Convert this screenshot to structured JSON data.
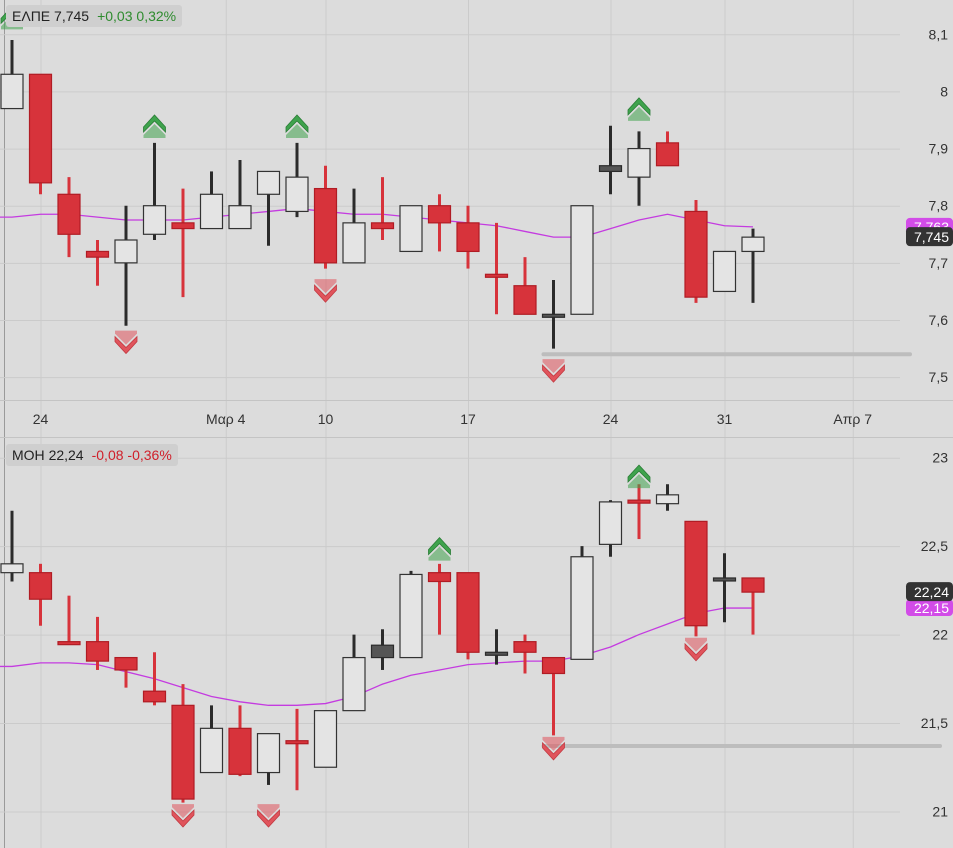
{
  "colors": {
    "background": "#dcdcdc",
    "grid": "#cbcbcb",
    "bear": "#d7333b",
    "bear_edge": "#b01c24",
    "bull_fill": "#e4e4e4",
    "neutral_fill": "#555555",
    "wick": "#2b2b2b",
    "ma": "#c43be0",
    "up_arrow": "#3fa34d",
    "down_arrow": "#e0545c",
    "last_price_bg": "#333333",
    "ma_label_bg": "#d24ce8",
    "support_line": "#bdbdbd"
  },
  "x_axis": {
    "labels": [
      {
        "text": "24",
        "index": 1
      },
      {
        "text": "Μαρ 4",
        "index": 7.5
      },
      {
        "text": "10",
        "index": 11
      },
      {
        "text": "17",
        "index": 16
      },
      {
        "text": "24",
        "index": 21
      },
      {
        "text": "31",
        "index": 25
      },
      {
        "text": "Απρ 7",
        "index": 29.5
      }
    ]
  },
  "panels": [
    {
      "header": {
        "symbol": "ΕΛΠΕ",
        "price": "7,745",
        "change": "+0,03",
        "change_pct": "0,32%",
        "direction": "up"
      },
      "last_price_label": "7,745",
      "ma_label": "7,763"
    },
    {
      "header": {
        "symbol": "ΜΟΗ",
        "price": "22,24",
        "change": "-0,08",
        "change_pct": "-0,36%",
        "direction": "down"
      },
      "last_price_label": "22,24",
      "ma_label": "22,15"
    }
  ],
  "chart_data": [
    {
      "type": "candlestick",
      "symbol": "ΕΛΠΕ",
      "ylim": [
        7.46,
        8.16
      ],
      "yticks": [
        "7,5",
        "7,6",
        "7,7",
        "7,8",
        "7,9",
        "8",
        "8,1"
      ],
      "support_level": 7.54,
      "candles": [
        {
          "i": 0,
          "o": 7.97,
          "h": 8.09,
          "l": 7.97,
          "c": 8.03,
          "t": "bull"
        },
        {
          "i": 1,
          "o": 8.03,
          "h": 8.03,
          "l": 7.82,
          "c": 7.84,
          "t": "bear"
        },
        {
          "i": 2,
          "o": 7.82,
          "h": 7.85,
          "l": 7.71,
          "c": 7.75,
          "t": "bear"
        },
        {
          "i": 3,
          "o": 7.72,
          "h": 7.74,
          "l": 7.66,
          "c": 7.71,
          "t": "bear"
        },
        {
          "i": 4,
          "o": 7.7,
          "h": 7.8,
          "l": 7.59,
          "c": 7.74,
          "t": "bull"
        },
        {
          "i": 5,
          "o": 7.75,
          "h": 7.91,
          "l": 7.74,
          "c": 7.8,
          "t": "bull"
        },
        {
          "i": 6,
          "o": 7.77,
          "h": 7.83,
          "l": 7.64,
          "c": 7.76,
          "t": "bear"
        },
        {
          "i": 7,
          "o": 7.76,
          "h": 7.86,
          "l": 7.76,
          "c": 7.82,
          "t": "bull"
        },
        {
          "i": 8,
          "o": 7.76,
          "h": 7.88,
          "l": 7.76,
          "c": 7.8,
          "t": "bull"
        },
        {
          "i": 9,
          "o": 7.82,
          "h": 7.86,
          "l": 7.73,
          "c": 7.86,
          "t": "bull"
        },
        {
          "i": 10,
          "o": 7.79,
          "h": 7.91,
          "l": 7.78,
          "c": 7.85,
          "t": "bull"
        },
        {
          "i": 11,
          "o": 7.83,
          "h": 7.87,
          "l": 7.69,
          "c": 7.7,
          "t": "bear"
        },
        {
          "i": 12,
          "o": 7.7,
          "h": 7.83,
          "l": 7.7,
          "c": 7.77,
          "t": "bull"
        },
        {
          "i": 13,
          "o": 7.77,
          "h": 7.85,
          "l": 7.74,
          "c": 7.76,
          "t": "bear"
        },
        {
          "i": 14,
          "o": 7.72,
          "h": 7.8,
          "l": 7.72,
          "c": 7.8,
          "t": "bull"
        },
        {
          "i": 15,
          "o": 7.8,
          "h": 7.82,
          "l": 7.72,
          "c": 7.77,
          "t": "bear"
        },
        {
          "i": 16,
          "o": 7.77,
          "h": 7.8,
          "l": 7.69,
          "c": 7.72,
          "t": "bear"
        },
        {
          "i": 17,
          "o": 7.68,
          "h": 7.77,
          "l": 7.61,
          "c": 7.68,
          "t": "bear"
        },
        {
          "i": 18,
          "o": 7.66,
          "h": 7.71,
          "l": 7.61,
          "c": 7.61,
          "t": "bear"
        },
        {
          "i": 19,
          "o": 7.61,
          "h": 7.67,
          "l": 7.55,
          "c": 7.61,
          "t": "neutral"
        },
        {
          "i": 20,
          "o": 7.61,
          "h": 7.8,
          "l": 7.61,
          "c": 7.8,
          "t": "bull"
        },
        {
          "i": 21,
          "o": 7.86,
          "h": 7.94,
          "l": 7.82,
          "c": 7.87,
          "t": "neutral"
        },
        {
          "i": 22,
          "o": 7.85,
          "h": 7.93,
          "l": 7.8,
          "c": 7.9,
          "t": "bull"
        },
        {
          "i": 23,
          "o": 7.91,
          "h": 7.93,
          "l": 7.87,
          "c": 7.87,
          "t": "bear"
        },
        {
          "i": 24,
          "o": 7.79,
          "h": 7.81,
          "l": 7.63,
          "c": 7.64,
          "t": "bear"
        },
        {
          "i": 25,
          "o": 7.65,
          "h": 7.72,
          "l": 7.65,
          "c": 7.72,
          "t": "bull"
        },
        {
          "i": 26,
          "o": 7.72,
          "h": 7.76,
          "l": 7.63,
          "c": 7.745,
          "t": "bull"
        }
      ],
      "ma": [
        7.78,
        7.785,
        7.785,
        7.78,
        7.775,
        7.775,
        7.775,
        7.78,
        7.785,
        7.79,
        7.795,
        7.79,
        7.785,
        7.785,
        7.78,
        7.775,
        7.77,
        7.765,
        7.755,
        7.745,
        7.745,
        7.76,
        7.775,
        7.785,
        7.775,
        7.765,
        7.763
      ],
      "signals": [
        {
          "i": 0,
          "dir": "up",
          "y": 8.14
        },
        {
          "i": 5,
          "dir": "up",
          "y": 7.95
        },
        {
          "i": 10,
          "dir": "up",
          "y": 7.95
        },
        {
          "i": 22,
          "dir": "up",
          "y": 7.98
        },
        {
          "i": 4,
          "dir": "down",
          "y": 7.55
        },
        {
          "i": 11,
          "dir": "down",
          "y": 7.64
        },
        {
          "i": 19,
          "dir": "down",
          "y": 7.5
        }
      ]
    },
    {
      "type": "candlestick",
      "symbol": "ΜΟΗ",
      "ylim": [
        20.85,
        23.1
      ],
      "yticks": [
        "21",
        "21,5",
        "22",
        "22,5",
        "23"
      ],
      "support_level": 21.37,
      "candles": [
        {
          "i": 0,
          "o": 22.4,
          "h": 22.7,
          "l": 22.3,
          "c": 22.35,
          "t": "bull"
        },
        {
          "i": 1,
          "o": 22.35,
          "h": 22.4,
          "l": 22.05,
          "c": 22.2,
          "t": "bear"
        },
        {
          "i": 2,
          "o": 21.96,
          "h": 22.22,
          "l": 21.96,
          "c": 21.96,
          "t": "bear"
        },
        {
          "i": 3,
          "o": 21.96,
          "h": 22.1,
          "l": 21.8,
          "c": 21.85,
          "t": "bear"
        },
        {
          "i": 4,
          "o": 21.87,
          "h": 21.87,
          "l": 21.7,
          "c": 21.8,
          "t": "bear"
        },
        {
          "i": 5,
          "o": 21.68,
          "h": 21.9,
          "l": 21.6,
          "c": 21.62,
          "t": "bear"
        },
        {
          "i": 6,
          "o": 21.6,
          "h": 21.72,
          "l": 21.05,
          "c": 21.07,
          "t": "bear"
        },
        {
          "i": 7,
          "o": 21.22,
          "h": 21.6,
          "l": 21.22,
          "c": 21.47,
          "t": "bull"
        },
        {
          "i": 8,
          "o": 21.47,
          "h": 21.6,
          "l": 21.2,
          "c": 21.21,
          "t": "bear"
        },
        {
          "i": 9,
          "o": 21.22,
          "h": 21.44,
          "l": 21.15,
          "c": 21.44,
          "t": "bull"
        },
        {
          "i": 10,
          "o": 21.4,
          "h": 21.58,
          "l": 21.12,
          "c": 21.4,
          "t": "bear"
        },
        {
          "i": 11,
          "o": 21.25,
          "h": 21.57,
          "l": 21.25,
          "c": 21.57,
          "t": "bull"
        },
        {
          "i": 12,
          "o": 21.57,
          "h": 22.0,
          "l": 21.57,
          "c": 21.87,
          "t": "bull"
        },
        {
          "i": 13,
          "o": 21.87,
          "h": 22.03,
          "l": 21.8,
          "c": 21.94,
          "t": "neutral"
        },
        {
          "i": 14,
          "o": 21.87,
          "h": 22.36,
          "l": 21.87,
          "c": 22.34,
          "t": "bull"
        },
        {
          "i": 15,
          "o": 22.35,
          "h": 22.4,
          "l": 22.0,
          "c": 22.3,
          "t": "bear"
        },
        {
          "i": 16,
          "o": 22.35,
          "h": 22.35,
          "l": 21.86,
          "c": 21.9,
          "t": "bear"
        },
        {
          "i": 17,
          "o": 21.9,
          "h": 22.03,
          "l": 21.83,
          "c": 21.9,
          "t": "neutral"
        },
        {
          "i": 18,
          "o": 21.96,
          "h": 22.0,
          "l": 21.78,
          "c": 21.9,
          "t": "bear"
        },
        {
          "i": 19,
          "o": 21.87,
          "h": 21.87,
          "l": 21.43,
          "c": 21.78,
          "t": "bear"
        },
        {
          "i": 20,
          "o": 21.86,
          "h": 22.5,
          "l": 21.86,
          "c": 22.44,
          "t": "bull"
        },
        {
          "i": 21,
          "o": 22.51,
          "h": 22.76,
          "l": 22.44,
          "c": 22.75,
          "t": "bull"
        },
        {
          "i": 22,
          "o": 22.76,
          "h": 22.85,
          "l": 22.54,
          "c": 22.76,
          "t": "bear"
        },
        {
          "i": 23,
          "o": 22.74,
          "h": 22.85,
          "l": 22.7,
          "c": 22.79,
          "t": "bull"
        },
        {
          "i": 24,
          "o": 22.64,
          "h": 22.64,
          "l": 21.99,
          "c": 22.05,
          "t": "bear"
        },
        {
          "i": 25,
          "o": 22.32,
          "h": 22.46,
          "l": 22.07,
          "c": 22.32,
          "t": "neutral"
        },
        {
          "i": 26,
          "o": 22.32,
          "h": 22.32,
          "l": 22.0,
          "c": 22.24,
          "t": "bear"
        }
      ],
      "ma": [
        21.82,
        21.84,
        21.84,
        21.83,
        21.79,
        21.75,
        21.7,
        21.65,
        21.62,
        21.6,
        21.6,
        21.61,
        21.65,
        21.72,
        21.77,
        21.8,
        21.83,
        21.84,
        21.85,
        21.85,
        21.88,
        21.93,
        22.0,
        22.06,
        22.12,
        22.15,
        22.15
      ],
      "signals": [
        {
          "i": 15,
          "dir": "up",
          "y": 22.52
        },
        {
          "i": 22,
          "dir": "up",
          "y": 22.93
        },
        {
          "i": 6,
          "dir": "down",
          "y": 20.94
        },
        {
          "i": 9,
          "dir": "down",
          "y": 20.94
        },
        {
          "i": 19,
          "dir": "down",
          "y": 21.32
        },
        {
          "i": 24,
          "dir": "down",
          "y": 21.88
        }
      ]
    }
  ]
}
